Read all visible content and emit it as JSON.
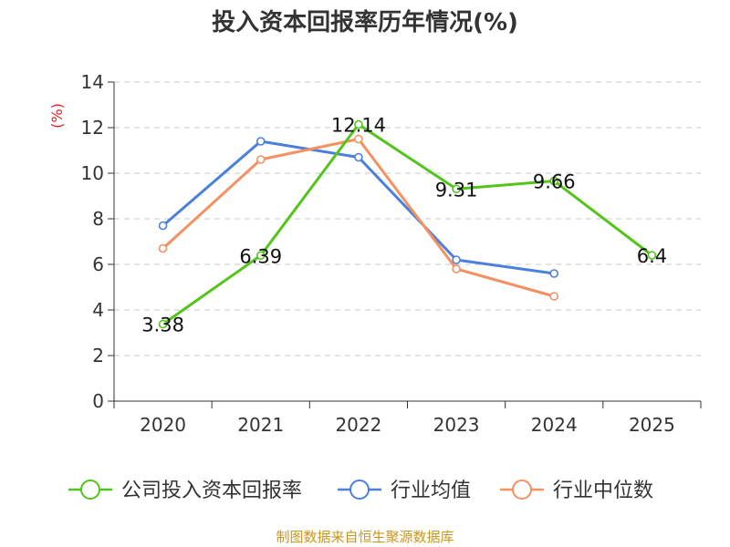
{
  "chart_data": {
    "type": "line",
    "title": "投入资本回报率历年情况(%)",
    "xlabel": "",
    "ylabel": "(%)",
    "categories": [
      "2020",
      "2021",
      "2022",
      "2023",
      "2024",
      "2025"
    ],
    "ylim": [
      0,
      14
    ],
    "yticks": [
      0,
      2,
      4,
      6,
      8,
      10,
      12,
      14
    ],
    "grid": true,
    "legend_position": "bottom",
    "series": [
      {
        "name": "公司投入资本回报率",
        "color": "#52c41a",
        "values": [
          3.38,
          6.39,
          12.14,
          9.31,
          9.66,
          6.4
        ],
        "labels": [
          "3.38",
          "6.39",
          "12.14",
          "9.31",
          "9.66",
          "6.4"
        ]
      },
      {
        "name": "行业均值",
        "color": "#4a7fdc",
        "values": [
          7.7,
          11.4,
          10.7,
          6.2,
          5.6,
          null
        ]
      },
      {
        "name": "行业中位数",
        "color": "#f59060",
        "values": [
          6.7,
          10.6,
          11.5,
          5.8,
          4.6,
          null
        ]
      }
    ]
  },
  "source": "制图数据来自恒生聚源数据库"
}
